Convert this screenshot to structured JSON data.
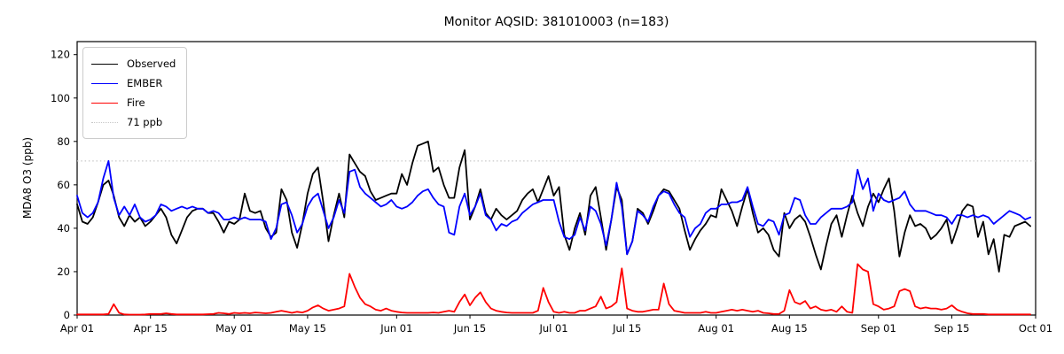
{
  "title": "Monitor AQSID: 381010003 (n=183)",
  "chart_data": {
    "type": "line",
    "title": "Monitor AQSID: 381010003 (n=183)",
    "xlabel": "",
    "ylabel": "MDA8 O3 (ppb)",
    "ylim": [
      0,
      126
    ],
    "yticks": [
      0,
      20,
      40,
      60,
      80,
      100,
      120
    ],
    "x_tick_labels": [
      "Apr 01",
      "Apr 15",
      "May 01",
      "May 15",
      "Jun 01",
      "Jun 15",
      "Jul 01",
      "Jul 15",
      "Aug 01",
      "Aug 15",
      "Sep 01",
      "Sep 15",
      "Oct 01"
    ],
    "x_tick_days": [
      1,
      15,
      31,
      45,
      62,
      76,
      92,
      106,
      123,
      137,
      154,
      168,
      184
    ],
    "x_range_days": [
      1,
      184
    ],
    "n_points": 183,
    "grid": false,
    "legend_position": "upper left",
    "threshold": {
      "value": 71,
      "label": "71 ppb",
      "color": "#c8c8c8",
      "style": "dotted"
    },
    "series": [
      {
        "name": "Observed",
        "color": "#000000",
        "values": [
          51,
          43,
          42,
          45,
          52,
          60,
          62,
          55,
          45,
          41,
          46,
          43,
          45,
          41,
          43,
          46,
          49,
          45,
          37,
          33,
          39,
          45,
          48,
          49,
          49,
          47,
          47,
          43,
          38,
          43,
          42,
          44,
          56,
          48,
          47,
          48,
          40,
          36,
          38,
          58,
          53,
          38,
          31,
          42,
          56,
          65,
          68,
          52,
          34,
          46,
          56,
          45,
          74,
          70,
          66,
          64,
          57,
          53,
          54,
          55,
          56,
          56,
          65,
          60,
          70,
          78,
          79,
          80,
          66,
          68,
          60,
          54,
          54,
          68,
          76,
          44,
          50,
          58,
          47,
          44,
          49,
          46,
          44,
          46,
          48,
          53,
          56,
          58,
          52,
          58,
          64,
          55,
          59,
          37,
          30,
          40,
          47,
          37,
          55,
          59,
          45,
          30,
          44,
          59,
          53,
          28,
          34,
          49,
          47,
          42,
          48,
          55,
          58,
          57,
          53,
          49,
          39,
          30,
          35,
          39,
          42,
          46,
          45,
          58,
          53,
          48,
          41,
          50,
          58,
          47,
          38,
          40,
          37,
          30,
          27,
          47,
          40,
          44,
          46,
          43,
          36,
          28,
          21,
          32,
          42,
          46,
          36,
          46,
          55,
          47,
          41,
          50,
          56,
          52,
          58,
          63,
          48,
          27,
          38,
          46,
          41,
          42,
          40,
          35,
          37,
          40,
          44,
          33,
          40,
          48,
          51,
          50,
          36,
          43,
          28,
          35,
          20,
          37,
          36,
          41,
          42,
          43,
          41
        ]
      },
      {
        "name": "EMBER",
        "color": "#0000ff",
        "values": [
          55,
          47,
          45,
          47,
          52,
          63,
          71,
          54,
          46,
          50,
          46,
          51,
          45,
          43,
          44,
          46,
          51,
          50,
          48,
          49,
          50,
          49,
          50,
          49,
          49,
          47,
          48,
          47,
          44,
          44,
          45,
          44,
          45,
          44,
          44,
          44,
          43,
          35,
          40,
          51,
          52,
          46,
          38,
          42,
          50,
          54,
          56,
          48,
          40,
          45,
          53,
          47,
          66,
          67,
          59,
          56,
          54,
          52,
          50,
          51,
          53,
          50,
          49,
          50,
          52,
          55,
          57,
          58,
          54,
          51,
          50,
          38,
          37,
          50,
          56,
          46,
          50,
          56,
          46,
          44,
          39,
          42,
          41,
          43,
          44,
          47,
          49,
          51,
          52,
          53,
          53,
          53,
          43,
          36,
          35,
          37,
          45,
          39,
          50,
          48,
          42,
          32,
          44,
          61,
          50,
          28,
          34,
          48,
          46,
          43,
          50,
          55,
          57,
          56,
          51,
          47,
          45,
          36,
          40,
          42,
          47,
          49,
          49,
          51,
          51,
          52,
          52,
          53,
          59,
          50,
          42,
          41,
          44,
          43,
          37,
          46,
          47,
          54,
          53,
          46,
          42,
          42,
          45,
          47,
          49,
          49,
          49,
          50,
          52,
          67,
          58,
          63,
          48,
          56,
          53,
          52,
          53,
          54,
          57,
          51,
          48,
          48,
          48,
          47,
          46,
          46,
          45,
          42,
          46,
          46,
          45,
          46,
          45,
          46,
          45,
          42,
          44,
          46,
          48,
          47,
          46,
          44,
          45
        ]
      },
      {
        "name": "Fire",
        "color": "#ff0000",
        "values": [
          0.3,
          0.3,
          0.3,
          0.3,
          0.3,
          0.3,
          0.5,
          5,
          1,
          0.3,
          0.2,
          0.2,
          0.2,
          0.3,
          0.5,
          0.5,
          0.5,
          0.8,
          0.5,
          0.3,
          0.3,
          0.3,
          0.3,
          0.3,
          0.3,
          0.4,
          0.5,
          1,
          0.8,
          0.5,
          1,
          0.8,
          1,
          0.8,
          1.2,
          1,
          0.8,
          1,
          1.5,
          2,
          1.5,
          1,
          1.5,
          1.2,
          2,
          3.5,
          4.5,
          3,
          2,
          2.5,
          3,
          4,
          19,
          13,
          8,
          5,
          4,
          2.5,
          2,
          3,
          2,
          1.5,
          1.2,
          1,
          1,
          1,
          1,
          1,
          1.2,
          1,
          1.5,
          2,
          1.5,
          6,
          9.5,
          4.5,
          8,
          10.5,
          6,
          3,
          2,
          1.5,
          1.2,
          1,
          1,
          1,
          1,
          1,
          2,
          12.5,
          6,
          1.5,
          1,
          1.5,
          1,
          1,
          2,
          2,
          3,
          4,
          8.5,
          3,
          4,
          6,
          21.5,
          3,
          2,
          1.5,
          1.5,
          2,
          2.5,
          2.5,
          14.5,
          5,
          2,
          1.5,
          1,
          1,
          1,
          1,
          1.5,
          1,
          1,
          1.5,
          2,
          2.5,
          2,
          2.5,
          2,
          1.5,
          2,
          1,
          0.8,
          0.5,
          0.5,
          2,
          11.5,
          6,
          5,
          6.5,
          3,
          4,
          2.5,
          2,
          2.5,
          1.5,
          4,
          1.5,
          1,
          23.5,
          21,
          20,
          5,
          4,
          2.5,
          3,
          4,
          11,
          12,
          11,
          4,
          3,
          3.5,
          3,
          3,
          2.5,
          3,
          4.5,
          2.5,
          1.5,
          0.8,
          0.5,
          0.5,
          0.5,
          0.3,
          0.3,
          0.3,
          0.3,
          0.3,
          0.3,
          0.3,
          0.3,
          0.3
        ]
      }
    ]
  },
  "legend": {
    "items": [
      {
        "label": "Observed"
      },
      {
        "label": "EMBER"
      },
      {
        "label": "Fire"
      },
      {
        "label": "71 ppb"
      }
    ]
  }
}
